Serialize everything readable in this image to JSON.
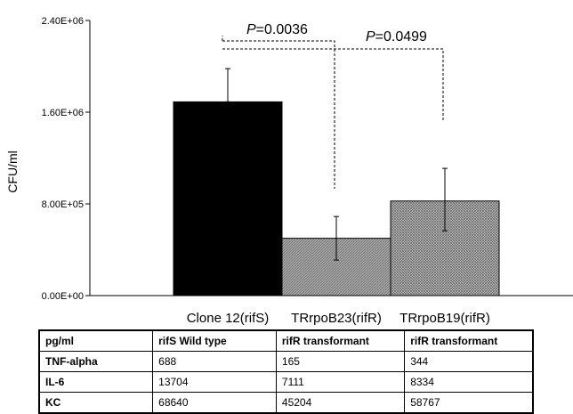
{
  "chart_data": {
    "type": "bar",
    "ylabel": "CFU/ml",
    "ylim": [
      0,
      2400000
    ],
    "yticks": [
      "0.00E+00",
      "8.00E+05",
      "1.60E+06",
      "2.40E+06"
    ],
    "ytick_values": [
      0,
      800000,
      1600000,
      2400000
    ],
    "categories": [
      "Clone 12(rifS)",
      "TRrpoB23(rifR)",
      "TRrpoB19(rifR)"
    ],
    "values": [
      1690000,
      500000,
      825000
    ],
    "error_high": [
      1980000,
      690000,
      1110000
    ],
    "error_low": [
      1690000,
      310000,
      565000
    ],
    "fills": [
      "#000000",
      "#9a9a9a",
      "#c4c4c4"
    ],
    "annotations": [
      {
        "italic": "P",
        "text": "=0.0036",
        "from": 0,
        "to": 1
      },
      {
        "italic": "P",
        "text": "=0.0499",
        "from": 0,
        "to": 2
      }
    ]
  },
  "table": {
    "header": [
      "pg/ml",
      "rifS Wild type",
      "rifR transformant",
      "rifR transformant"
    ],
    "rows": [
      [
        "TNF-alpha",
        "688",
        "165",
        "344"
      ],
      [
        "IL-6",
        "13704",
        "7111",
        "8334"
      ],
      [
        "KC",
        "68640",
        "45204",
        "58767"
      ]
    ]
  }
}
